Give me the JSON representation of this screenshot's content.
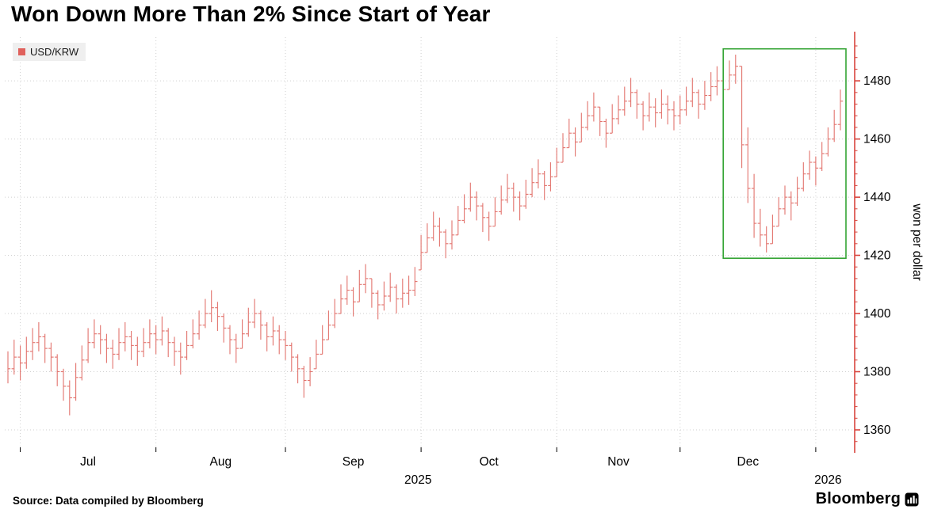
{
  "title": "Won Down More Than 2% Since Start of Year",
  "legend": {
    "label": "USD/KRW",
    "swatch_color": "#e0615c"
  },
  "y_axis_title": "won per dollar",
  "footer": {
    "source": "Source: Data compiled by Bloomberg",
    "brand": "Bloomberg"
  },
  "colors": {
    "bar": "#e2736d",
    "axis": "#d8453e",
    "grid": "#cfcfcf",
    "tick_label": "#000000",
    "annotation": "#34a434",
    "background": "#ffffff"
  },
  "chart_data": {
    "type": "bar",
    "subtype": "hlc-price-bars",
    "series_name": "USD/KRW",
    "ylabel": "won per dollar",
    "ylim": [
      1354,
      1495
    ],
    "yticks": [
      1360,
      1380,
      1400,
      1420,
      1440,
      1460,
      1480
    ],
    "minor_tick_step": 4,
    "x_gridlines": [
      2,
      24,
      45,
      67,
      89,
      109,
      131
    ],
    "month_labels": [
      {
        "label": "Jul",
        "i": 13
      },
      {
        "label": "Aug",
        "i": 34.5
      },
      {
        "label": "Sep",
        "i": 56
      },
      {
        "label": "Oct",
        "i": 78
      },
      {
        "label": "Nov",
        "i": 99
      },
      {
        "label": "Dec",
        "i": 120
      }
    ],
    "year_labels": [
      {
        "label": "2025",
        "i": 66.5
      },
      {
        "label": "2026",
        "i": 133
      }
    ],
    "annotation_box": {
      "i0": 116,
      "i1": 135.9,
      "v0": 1419,
      "v1": 1491
    },
    "bars_format": "[high, low, close]",
    "bars": [
      [
        1387,
        1376,
        1381
      ],
      [
        1391,
        1379,
        1385
      ],
      [
        1389,
        1377,
        1383
      ],
      [
        1392,
        1381,
        1387
      ],
      [
        1395,
        1384,
        1390
      ],
      [
        1397,
        1387,
        1392
      ],
      [
        1393,
        1383,
        1388
      ],
      [
        1390,
        1380,
        1385
      ],
      [
        1386,
        1375,
        1380
      ],
      [
        1381,
        1370,
        1375
      ],
      [
        1377,
        1365,
        1371
      ],
      [
        1383,
        1370,
        1378
      ],
      [
        1389,
        1377,
        1384
      ],
      [
        1395,
        1383,
        1390
      ],
      [
        1398,
        1388,
        1393
      ],
      [
        1396,
        1386,
        1391
      ],
      [
        1393,
        1383,
        1388
      ],
      [
        1391,
        1381,
        1386
      ],
      [
        1395,
        1384,
        1390
      ],
      [
        1397,
        1387,
        1392
      ],
      [
        1394,
        1384,
        1389
      ],
      [
        1392,
        1382,
        1387
      ],
      [
        1395,
        1385,
        1390
      ],
      [
        1398,
        1388,
        1393
      ],
      [
        1396,
        1386,
        1391
      ],
      [
        1399,
        1389,
        1394
      ],
      [
        1395,
        1385,
        1390
      ],
      [
        1392,
        1382,
        1387
      ],
      [
        1390,
        1379,
        1385
      ],
      [
        1394,
        1384,
        1389
      ],
      [
        1398,
        1388,
        1393
      ],
      [
        1401,
        1391,
        1396
      ],
      [
        1405,
        1395,
        1400
      ],
      [
        1408,
        1397,
        1402
      ],
      [
        1404,
        1394,
        1399
      ],
      [
        1400,
        1390,
        1395
      ],
      [
        1396,
        1386,
        1391
      ],
      [
        1393,
        1383,
        1388
      ],
      [
        1398,
        1388,
        1393
      ],
      [
        1402,
        1392,
        1397
      ],
      [
        1405,
        1395,
        1400
      ],
      [
        1401,
        1391,
        1396
      ],
      [
        1397,
        1387,
        1392
      ],
      [
        1399,
        1389,
        1394
      ],
      [
        1396,
        1386,
        1391
      ],
      [
        1394,
        1384,
        1389
      ],
      [
        1390,
        1380,
        1385
      ],
      [
        1386,
        1376,
        1381
      ],
      [
        1382,
        1371,
        1377
      ],
      [
        1385,
        1375,
        1380
      ],
      [
        1391,
        1381,
        1386
      ],
      [
        1396,
        1386,
        1391
      ],
      [
        1401,
        1391,
        1396
      ],
      [
        1405,
        1395,
        1400
      ],
      [
        1410,
        1400,
        1405
      ],
      [
        1413,
        1403,
        1408
      ],
      [
        1409,
        1399,
        1404
      ],
      [
        1415,
        1404,
        1410
      ],
      [
        1417,
        1407,
        1412
      ],
      [
        1412,
        1402,
        1407
      ],
      [
        1408,
        1398,
        1403
      ],
      [
        1411,
        1401,
        1406
      ],
      [
        1414,
        1404,
        1409
      ],
      [
        1410,
        1400,
        1405
      ],
      [
        1412,
        1402,
        1407
      ],
      [
        1413,
        1403,
        1408
      ],
      [
        1416,
        1406,
        1411
      ],
      [
        1427,
        1415,
        1421
      ],
      [
        1431,
        1421,
        1426
      ],
      [
        1435,
        1425,
        1430
      ],
      [
        1433,
        1423,
        1428
      ],
      [
        1429,
        1419,
        1424
      ],
      [
        1432,
        1422,
        1427
      ],
      [
        1437,
        1427,
        1432
      ],
      [
        1441,
        1431,
        1436
      ],
      [
        1445,
        1435,
        1440
      ],
      [
        1442,
        1432,
        1437
      ],
      [
        1438,
        1428,
        1433
      ],
      [
        1435,
        1425,
        1430
      ],
      [
        1440,
        1430,
        1435
      ],
      [
        1444,
        1434,
        1439
      ],
      [
        1448,
        1438,
        1443
      ],
      [
        1445,
        1435,
        1440
      ],
      [
        1442,
        1432,
        1437
      ],
      [
        1446,
        1436,
        1441
      ],
      [
        1450,
        1440,
        1445
      ],
      [
        1453,
        1443,
        1448
      ],
      [
        1449,
        1439,
        1444
      ],
      [
        1452,
        1442,
        1447
      ],
      [
        1457,
        1447,
        1452
      ],
      [
        1462,
        1452,
        1457
      ],
      [
        1467,
        1457,
        1462
      ],
      [
        1464,
        1454,
        1459
      ],
      [
        1469,
        1459,
        1464
      ],
      [
        1473,
        1463,
        1468
      ],
      [
        1476,
        1466,
        1471
      ],
      [
        1471,
        1461,
        1466
      ],
      [
        1467,
        1457,
        1462
      ],
      [
        1472,
        1462,
        1467
      ],
      [
        1475,
        1465,
        1470
      ],
      [
        1478,
        1468,
        1473
      ],
      [
        1481,
        1471,
        1476
      ],
      [
        1477,
        1467,
        1472
      ],
      [
        1473,
        1463,
        1468
      ],
      [
        1476,
        1466,
        1471
      ],
      [
        1474,
        1464,
        1469
      ],
      [
        1477,
        1467,
        1472
      ],
      [
        1475,
        1465,
        1470
      ],
      [
        1473,
        1463,
        1468
      ],
      [
        1475,
        1465,
        1470
      ],
      [
        1478,
        1468,
        1473
      ],
      [
        1481,
        1471,
        1476
      ],
      [
        1477,
        1467,
        1472
      ],
      [
        1480,
        1470,
        1475
      ],
      [
        1483,
        1473,
        1478
      ],
      [
        1485,
        1475,
        1480
      ],
      [
        1482,
        1472,
        1477
      ],
      [
        1487,
        1477,
        1482
      ],
      [
        1489,
        1479,
        1485
      ],
      [
        1485,
        1450,
        1458
      ],
      [
        1464,
        1438,
        1443
      ],
      [
        1448,
        1426,
        1431
      ],
      [
        1436,
        1423,
        1427
      ],
      [
        1430,
        1421,
        1424
      ],
      [
        1434,
        1424,
        1430
      ],
      [
        1440,
        1430,
        1436
      ],
      [
        1444,
        1434,
        1440
      ],
      [
        1442,
        1432,
        1438
      ],
      [
        1447,
        1437,
        1443
      ],
      [
        1452,
        1442,
        1448
      ],
      [
        1456,
        1446,
        1452
      ],
      [
        1454,
        1444,
        1450
      ],
      [
        1459,
        1449,
        1455
      ],
      [
        1464,
        1454,
        1460
      ],
      [
        1470,
        1459,
        1465
      ],
      [
        1477,
        1463,
        1473
      ]
    ]
  }
}
